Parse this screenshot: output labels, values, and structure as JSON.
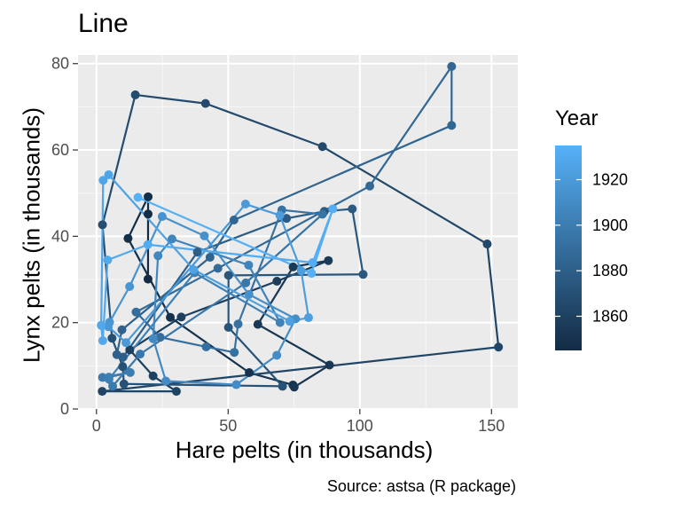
{
  "chart_data": {
    "type": "line",
    "title": "Line",
    "xlabel": "Hare pelts (in thousands)",
    "ylabel": "Lynx pelts (in thousands)",
    "caption": "Source: astsa (R package)",
    "xlim": [
      -7,
      160
    ],
    "ylim": [
      0,
      82
    ],
    "xticks": [
      0,
      50,
      100,
      150
    ],
    "yticks": [
      0,
      20,
      40,
      60,
      80
    ],
    "grid": true,
    "legend": {
      "title": "Year",
      "position": "right",
      "range": [
        1845,
        1935
      ],
      "ticks": [
        1860,
        1880,
        1900,
        1920
      ],
      "low_color": "#132B43",
      "high_color": "#56B1F7"
    },
    "colors": {
      "panel": "#EBEBEB",
      "grid": "#FFFFFF",
      "axis_text": "#4D4D4D"
    },
    "series": [
      {
        "year": [
          1845,
          1846,
          1847,
          1848,
          1849,
          1850,
          1851,
          1852,
          1853,
          1854,
          1855,
          1856,
          1857,
          1858,
          1859,
          1860,
          1861,
          1862,
          1863,
          1864,
          1865,
          1866,
          1867,
          1868,
          1869,
          1870,
          1871,
          1872,
          1873,
          1874,
          1875,
          1876,
          1877,
          1878,
          1879,
          1880,
          1881,
          1882,
          1883,
          1884,
          1885,
          1886,
          1887,
          1888,
          1889,
          1890,
          1891,
          1892,
          1893,
          1894,
          1895,
          1896,
          1897,
          1898,
          1899,
          1900,
          1901,
          1902,
          1903,
          1904,
          1905,
          1906,
          1907,
          1908,
          1909,
          1910,
          1911,
          1912,
          1913,
          1914,
          1915,
          1916,
          1917,
          1918,
          1919,
          1920,
          1921,
          1922,
          1923,
          1924,
          1925,
          1926,
          1927,
          1928,
          1929,
          1930,
          1931,
          1932,
          1933,
          1934,
          1935
        ],
        "hare": [
          19.58,
          19.6,
          19.61,
          11.99,
          28.04,
          58.0,
          74.6,
          75.09,
          88.48,
          61.28,
          74.67,
          88.06,
          68.51,
          32.19,
          12.64,
          21.49,
          30.35,
          2.18,
          152.65,
          148.36,
          85.81,
          41.41,
          14.75,
          2.28,
          5.91,
          9.95,
          10.44,
          70.64,
          50.12,
          50.13,
          101.25,
          97.12,
          86.51,
          72.17,
          38.32,
          10.11,
          7.74,
          9.67,
          43.12,
          52.21,
          134.85,
          134.86,
          103.79,
          46.1,
          15.03,
          24.2,
          41.65,
          52.34,
          53.78,
          70.4,
          85.81,
          56.69,
          16.59,
          6.16,
          2.3,
          12.82,
          4.72,
          4.73,
          37.22,
          69.72,
          57.78,
          28.68,
          23.37,
          21.54,
          26.34,
          53.1,
          68.48,
          75.58,
          57.92,
          40.97,
          24.95,
          12.59,
          4.97,
          4.5,
          11.21,
          56.6,
          69.63,
          77.74,
          80.53,
          73.38,
          36.93,
          4.64,
          2.54,
          1.8,
          2.39,
          4.23,
          19.52,
          82.11,
          89.76,
          81.66,
          15.76
        ],
        "lynx": [
          30.09,
          45.15,
          49.15,
          39.52,
          21.23,
          8.42,
          5.56,
          5.08,
          10.17,
          19.6,
          32.91,
          34.38,
          29.59,
          21.3,
          13.69,
          7.65,
          4.08,
          4.09,
          14.33,
          38.22,
          60.78,
          70.77,
          72.77,
          42.68,
          16.39,
          9.83,
          5.8,
          5.26,
          18.91,
          30.95,
          31.18,
          46.34,
          45.77,
          44.15,
          36.33,
          12.03,
          12.6,
          18.34,
          35.14,
          43.77,
          65.69,
          79.35,
          51.65,
          32.59,
          22.45,
          16.61,
          14.39,
          13.11,
          19.68,
          46.1,
          45.11,
          29.21,
          12.72,
          5.27,
          7.31,
          8.45,
          7.36,
          6.91,
          31.56,
          20.02,
          33.33,
          39.38,
          35.49,
          16.28,
          6.47,
          5.64,
          12.44,
          20.89,
          26.53,
          40.11,
          44.59,
          28.36,
          20.08,
          19.07,
          15.37,
          47.47,
          44.87,
          32.01,
          21.16,
          20.31,
          32.27,
          54.26,
          52.97,
          19.38,
          15.83,
          34.5,
          38.07,
          33.91,
          46.35,
          31.43,
          49.02
        ]
      }
    ]
  }
}
